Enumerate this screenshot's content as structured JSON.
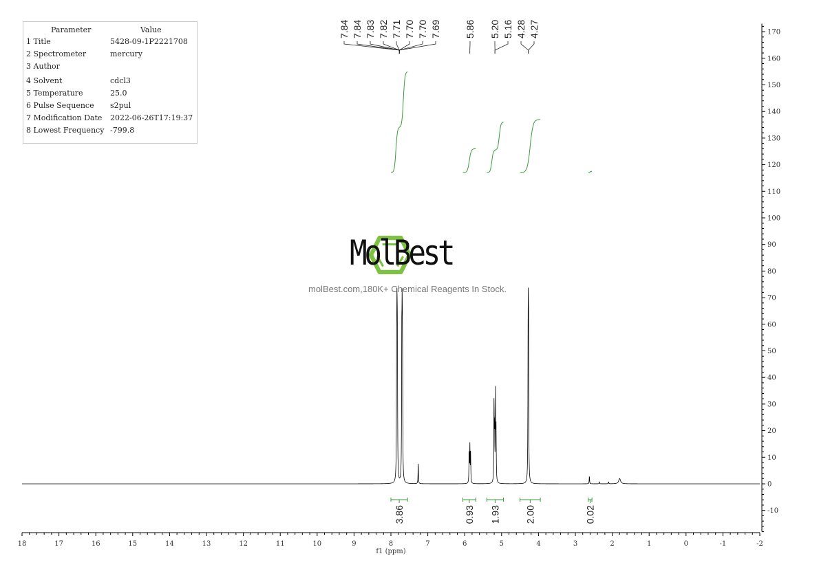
{
  "parameters": {
    "header": [
      "Parameter",
      "Value"
    ],
    "rows": [
      [
        "1 Title",
        "5428-09-1P2221708"
      ],
      [
        "2 Spectrometer",
        "mercury"
      ],
      [
        "3 Author",
        ""
      ],
      [
        "4 Solvent",
        "cdcl3"
      ],
      [
        "5 Temperature",
        "25.0"
      ],
      [
        "6 Pulse Sequence",
        "s2pul"
      ],
      [
        "7 Modification Date",
        "2022-06-26T17:19:37"
      ],
      [
        "8 Lowest Frequency",
        "-799.8"
      ]
    ]
  },
  "watermark": {
    "logo_text": "MolBest",
    "tagline": "molBest.com,180K+ Chemical Reagents In Stock.",
    "logo_color": "#7dc242"
  },
  "chart_data": {
    "type": "line",
    "xlabel": "f1 (ppm)",
    "xlim": [
      18,
      -2
    ],
    "ylim": [
      -18,
      173
    ],
    "x_ticks": [
      18,
      17,
      16,
      15,
      14,
      13,
      12,
      11,
      10,
      9,
      8,
      7,
      6,
      5,
      4,
      3,
      2,
      1,
      0,
      -1,
      -2
    ],
    "y_ticks": [
      170,
      160,
      150,
      140,
      130,
      120,
      110,
      100,
      90,
      80,
      70,
      60,
      50,
      40,
      30,
      20,
      10,
      0,
      -10
    ],
    "line_color": "#000000",
    "integral_color": "#3a9a3a",
    "peaks": [
      {
        "ppm": 7.845,
        "height": 45
      },
      {
        "ppm": 7.835,
        "height": 52
      },
      {
        "ppm": 7.825,
        "height": 48
      },
      {
        "ppm": 7.705,
        "height": 50
      },
      {
        "ppm": 7.695,
        "height": 52
      },
      {
        "ppm": 7.685,
        "height": 40
      },
      {
        "ppm": 7.26,
        "height": 8
      },
      {
        "ppm": 5.88,
        "height": 12
      },
      {
        "ppm": 5.86,
        "height": 14
      },
      {
        "ppm": 5.84,
        "height": 11
      },
      {
        "ppm": 5.205,
        "height": 30
      },
      {
        "ppm": 5.19,
        "height": 20
      },
      {
        "ppm": 5.165,
        "height": 33
      },
      {
        "ppm": 5.15,
        "height": 18
      },
      {
        "ppm": 4.28,
        "height": 60
      },
      {
        "ppm": 4.27,
        "height": 55
      },
      {
        "ppm": 2.62,
        "height": 3
      },
      {
        "ppm": 2.35,
        "height": 0.8
      },
      {
        "ppm": 2.1,
        "height": 0.8
      },
      {
        "ppm": 1.8,
        "height": 2
      }
    ],
    "peak_labels": [
      "7.84",
      "7.84",
      "7.83",
      "7.82",
      "7.71",
      "7.70",
      "7.70",
      "7.69",
      "5.86",
      "5.20",
      "5.16",
      "4.28",
      "4.27"
    ],
    "peak_label_groups": [
      {
        "labels": [
          "7.84",
          "7.84",
          "7.83",
          "7.82",
          "7.71",
          "7.70",
          "7.70",
          "7.69"
        ],
        "ppm": 7.77
      },
      {
        "labels": [
          "5.86"
        ],
        "ppm": 5.86
      },
      {
        "labels": [
          "5.20",
          "5.16"
        ],
        "ppm": 5.18
      },
      {
        "labels": [
          "4.28",
          "4.27"
        ],
        "ppm": 4.275
      }
    ],
    "integrals": [
      {
        "from": 8.0,
        "to": 7.55,
        "value": "3.86",
        "rise": 38,
        "step_ppm": 7.77
      },
      {
        "from": 6.05,
        "to": 5.7,
        "value": "0.93",
        "rise": 9
      },
      {
        "from": 5.4,
        "to": 4.95,
        "value": "1.93",
        "rise": 19,
        "step_ppm": 5.18
      },
      {
        "from": 4.5,
        "to": 3.95,
        "value": "2.00",
        "rise": 20
      },
      {
        "from": 2.65,
        "to": 2.55,
        "value": "0.02",
        "rise": 0.5
      }
    ]
  }
}
